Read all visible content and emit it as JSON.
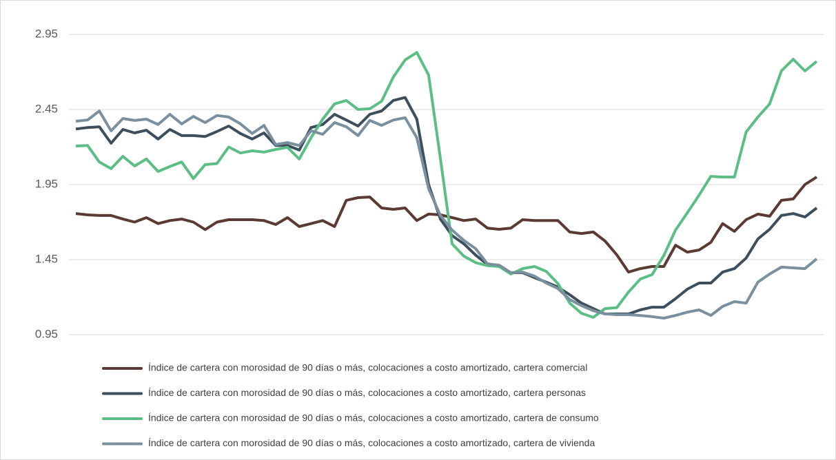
{
  "chart_data": {
    "type": "line",
    "categories": [
      null,
      null,
      null,
      null,
      null,
      null,
      null,
      null,
      null,
      null,
      null,
      null,
      null,
      null,
      null,
      null,
      null,
      null,
      null,
      null,
      null,
      null,
      null,
      null,
      null,
      null,
      null,
      null,
      null,
      null,
      null,
      null,
      null,
      null,
      null,
      null,
      null,
      null,
      null,
      null,
      null,
      null,
      null,
      null,
      null,
      null,
      null,
      null,
      null,
      null,
      null,
      null,
      null,
      null,
      null,
      null,
      null,
      null,
      null,
      null,
      null,
      null,
      null,
      null
    ],
    "ylim": [
      0.95,
      2.95
    ],
    "yticks": [
      0.95,
      1.45,
      1.95,
      2.45,
      2.95
    ],
    "grid": true,
    "series": [
      {
        "name": "Índice de cartera con morosidad de 90 días o más, colocaciones a costo amortizado, cartera comercial",
        "color": "#5b3a33",
        "values": [
          1.757,
          1.748,
          1.744,
          1.744,
          1.72,
          1.7,
          1.73,
          1.69,
          1.71,
          1.72,
          1.7,
          1.65,
          1.7,
          1.716,
          1.716,
          1.716,
          1.71,
          1.684,
          1.73,
          1.67,
          1.69,
          1.71,
          1.67,
          1.845,
          1.863,
          1.867,
          1.794,
          1.785,
          1.794,
          1.71,
          1.753,
          1.748,
          1.73,
          1.71,
          1.72,
          1.66,
          1.652,
          1.66,
          1.716,
          1.71,
          1.71,
          1.71,
          1.634,
          1.624,
          1.634,
          1.574,
          1.482,
          1.367,
          1.39,
          1.404,
          1.404,
          1.546,
          1.5,
          1.514,
          1.565,
          1.69,
          1.638,
          1.716,
          1.753,
          1.739,
          1.845,
          1.854,
          1.95,
          2.0
        ]
      },
      {
        "name": "Índice de cartera con morosidad de 90 días o más, colocaciones a costo amortizado, cartera personas",
        "color": "#3d4f5c",
        "values": [
          2.32,
          2.33,
          2.335,
          2.225,
          2.317,
          2.294,
          2.312,
          2.253,
          2.317,
          2.276,
          2.276,
          2.27,
          2.303,
          2.34,
          2.29,
          2.253,
          2.294,
          2.21,
          2.21,
          2.18,
          2.33,
          2.35,
          2.418,
          2.38,
          2.34,
          2.418,
          2.44,
          2.51,
          2.53,
          2.386,
          1.95,
          1.72,
          1.61,
          1.555,
          1.48,
          1.418,
          1.404,
          1.363,
          1.363,
          1.33,
          1.3,
          1.267,
          1.216,
          1.16,
          1.124,
          1.088,
          1.088,
          1.088,
          1.115,
          1.133,
          1.133,
          1.19,
          1.253,
          1.294,
          1.294,
          1.367,
          1.39,
          1.46,
          1.588,
          1.652,
          1.744,
          1.757,
          1.734,
          1.794
        ]
      },
      {
        "name": "Índice de cartera con morosidad de 90 días o más, colocaciones a costo amortizado, cartera de consumo",
        "color": "#5bbf85",
        "values": [
          2.207,
          2.21,
          2.1,
          2.056,
          2.138,
          2.074,
          2.12,
          2.037,
          2.07,
          2.1,
          1.99,
          2.083,
          2.09,
          2.2,
          2.16,
          2.175,
          2.166,
          2.184,
          2.198,
          2.12,
          2.262,
          2.386,
          2.487,
          2.51,
          2.45,
          2.455,
          2.505,
          2.666,
          2.78,
          2.83,
          2.68,
          2.124,
          1.555,
          1.473,
          1.43,
          1.41,
          1.404,
          1.354,
          1.39,
          1.404,
          1.372,
          1.29,
          1.16,
          1.092,
          1.065,
          1.124,
          1.13,
          1.234,
          1.32,
          1.35,
          1.477,
          1.647,
          1.762,
          1.88,
          2.005,
          2.0,
          2.0,
          2.3,
          2.4,
          2.487,
          2.707,
          2.785,
          2.707,
          2.77
        ]
      },
      {
        "name": "Índice de cartera con morosidad de 90 días o más, colocaciones a costo amortizado, cartera de vivienda",
        "color": "#7a909e",
        "values": [
          2.372,
          2.38,
          2.44,
          2.308,
          2.39,
          2.377,
          2.386,
          2.35,
          2.418,
          2.354,
          2.404,
          2.363,
          2.41,
          2.4,
          2.354,
          2.29,
          2.344,
          2.216,
          2.23,
          2.21,
          2.308,
          2.285,
          2.363,
          2.335,
          2.276,
          2.377,
          2.344,
          2.38,
          2.395,
          2.262,
          1.922,
          1.744,
          1.647,
          1.578,
          1.523,
          1.422,
          1.413,
          1.363,
          1.367,
          1.34,
          1.294,
          1.257,
          1.184,
          1.143,
          1.11,
          1.088,
          1.083,
          1.083,
          1.078,
          1.07,
          1.06,
          1.078,
          1.1,
          1.115,
          1.078,
          1.138,
          1.17,
          1.16,
          1.3,
          1.354,
          1.4,
          1.395,
          1.39,
          1.455
        ]
      }
    ]
  }
}
